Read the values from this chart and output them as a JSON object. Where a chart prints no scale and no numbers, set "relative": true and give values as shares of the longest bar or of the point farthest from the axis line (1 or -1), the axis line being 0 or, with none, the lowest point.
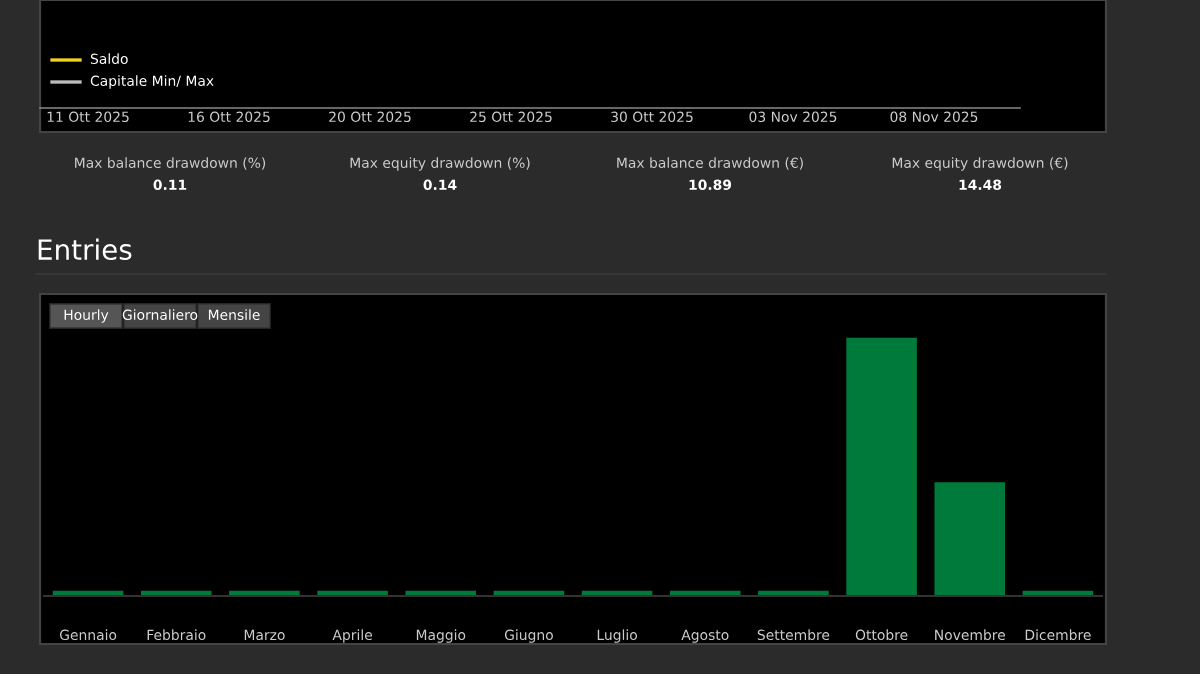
{
  "chart_data": [
    {
      "type": "other",
      "annotations": [
        "Saldo",
        "Capitale Min/ Max",
        "11 Ott 2025",
        "16 Ott 2025",
        "20 Ott 2025",
        "25 Ott 2025",
        "30 Ott 2025",
        "03 Nov 2025",
        "08 Nov 2025",
        "Max balance drawdown (%)",
        "0.11",
        "Max equity drawdown (%)",
        "0.14",
        "Max balance drawdown (€)",
        "10.89",
        "Max equity drawdown (€)",
        "14.48"
      ]
    },
    {
      "type": "bar",
      "title": "Entries",
      "relative": true,
      "color": "#007a3a",
      "categories": [
        "Gennaio",
        "Febbraio",
        "Marzo",
        "Aprile",
        "Maggio",
        "Giugno",
        "Luglio",
        "Agosto",
        "Settembre",
        "Ottobre",
        "Novembre",
        "Dicembre"
      ],
      "values": [
        0.02,
        0.02,
        0.02,
        0.02,
        0.02,
        0.02,
        0.02,
        0.02,
        0.02,
        1,
        0.44,
        0.02
      ],
      "annotations": [
        "Hourly",
        "Giornaliero",
        "Mensile"
      ]
    }
  ]
}
